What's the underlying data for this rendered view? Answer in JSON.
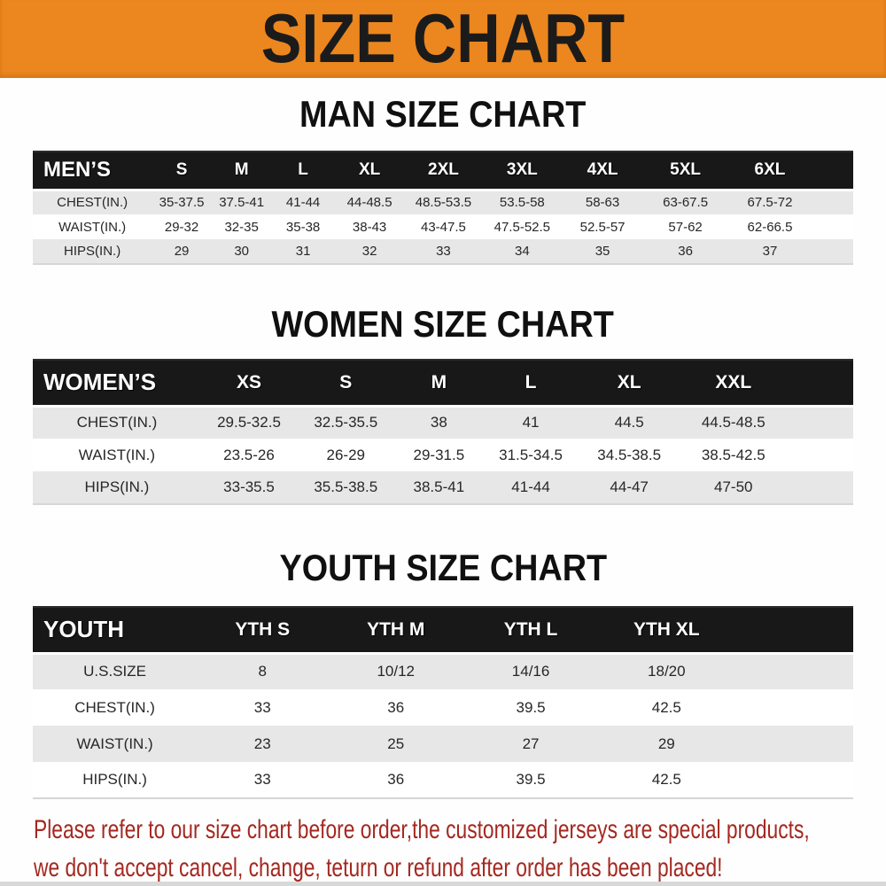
{
  "banner": {
    "title": "SIZE CHART",
    "bg_color": "#EC861E"
  },
  "sections": [
    {
      "id": "men",
      "title": "MAN SIZE CHART",
      "header_label": "MEN’S",
      "columns": [
        "S",
        "M",
        "L",
        "XL",
        "2XL",
        "3XL",
        "4XL",
        "5XL",
        "6XL"
      ],
      "rows": [
        {
          "label": "CHEST(IN.)",
          "values": [
            "35-37.5",
            "37.5-41",
            "41-44",
            "44-48.5",
            "48.5-53.5",
            "53.5-58",
            "58-63",
            "63-67.5",
            "67.5-72"
          ]
        },
        {
          "label": "WAIST(IN.)",
          "values": [
            "29-32",
            "32-35",
            "35-38",
            "38-43",
            "43-47.5",
            "47.5-52.5",
            "52.5-57",
            "57-62",
            "62-66.5"
          ]
        },
        {
          "label": "HIPS(IN.)",
          "values": [
            "29",
            "30",
            "31",
            "32",
            "33",
            "34",
            "35",
            "36",
            "37"
          ]
        }
      ]
    },
    {
      "id": "women",
      "title": "WOMEN SIZE CHART",
      "header_label": "WOMEN’S",
      "columns": [
        "XS",
        "S",
        "M",
        "L",
        "XL",
        "XXL"
      ],
      "rows": [
        {
          "label": "CHEST(IN.)",
          "values": [
            "29.5-32.5",
            "32.5-35.5",
            "38",
            "41",
            "44.5",
            "44.5-48.5"
          ]
        },
        {
          "label": "WAIST(IN.)",
          "values": [
            "23.5-26",
            "26-29",
            "29-31.5",
            "31.5-34.5",
            "34.5-38.5",
            "38.5-42.5"
          ]
        },
        {
          "label": "HIPS(IN.)",
          "values": [
            "33-35.5",
            "35.5-38.5",
            "38.5-41",
            "41-44",
            "44-47",
            "47-50"
          ]
        }
      ]
    },
    {
      "id": "youth",
      "title": "YOUTH SIZE CHART",
      "header_label": "YOUTH",
      "columns": [
        "YTH S",
        "YTH M",
        "YTH L",
        "YTH XL"
      ],
      "rows": [
        {
          "label": "U.S.SIZE",
          "values": [
            "8",
            "10/12",
            "14/16",
            "18/20"
          ]
        },
        {
          "label": "CHEST(IN.)",
          "values": [
            "33",
            "36",
            "39.5",
            "42.5"
          ]
        },
        {
          "label": "WAIST(IN.)",
          "values": [
            "23",
            "25",
            "27",
            "29"
          ]
        },
        {
          "label": "HIPS(IN.)",
          "values": [
            "33",
            "36",
            "39.5",
            "42.5"
          ]
        }
      ]
    }
  ],
  "disclaimer": {
    "lines": [
      "Please refer to our size chart before order,the customized jerseys are special products,",
      "we don't accept cancel, change, teturn or refund after order has been placed!"
    ],
    "color": "#A42820"
  }
}
